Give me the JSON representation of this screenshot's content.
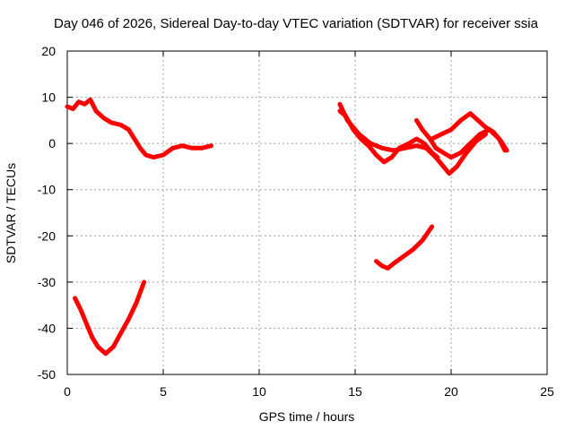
{
  "chart_data": {
    "type": "line",
    "title": "Day 046 of 2026, Sidereal Day-to-day VTEC variation (SDTVAR) for receiver ssia",
    "xlabel": "GPS time / hours",
    "ylabel": "SDTVAR / TECUs",
    "xlim": [
      0,
      25
    ],
    "ylim": [
      -50,
      20
    ],
    "xticks": [
      0,
      5,
      10,
      15,
      20,
      25
    ],
    "yticks": [
      -50,
      -40,
      -30,
      -20,
      -10,
      0,
      10,
      20
    ],
    "xtick_labels": [
      "0",
      "5",
      "10",
      "15",
      "20",
      "25"
    ],
    "ytick_labels": [
      "-50",
      "-40",
      "-30",
      "-20",
      "-10",
      "0",
      "10",
      "20"
    ],
    "grid": true,
    "color": "#ff0000",
    "series": [
      {
        "name": "track-a-main",
        "points": [
          [
            0.0,
            8
          ],
          [
            0.3,
            7.5
          ],
          [
            0.6,
            9
          ],
          [
            0.9,
            8.5
          ],
          [
            1.2,
            9.5
          ],
          [
            1.5,
            7
          ],
          [
            1.9,
            5.5
          ],
          [
            2.3,
            4.5
          ],
          [
            2.8,
            4
          ],
          [
            3.2,
            3
          ],
          [
            3.5,
            1
          ],
          [
            3.8,
            -1
          ],
          [
            4.1,
            -2.5
          ],
          [
            4.5,
            -3
          ],
          [
            5.0,
            -2.5
          ],
          [
            5.5,
            -1
          ],
          [
            6.0,
            -0.5
          ],
          [
            6.5,
            -1
          ],
          [
            7.0,
            -1
          ],
          [
            7.5,
            -0.5
          ]
        ]
      },
      {
        "name": "track-a-dip",
        "points": [
          [
            0.4,
            -33.5
          ],
          [
            0.7,
            -36
          ],
          [
            1.0,
            -39
          ],
          [
            1.3,
            -42
          ],
          [
            1.6,
            -44
          ],
          [
            2.0,
            -45.5
          ],
          [
            2.4,
            -44
          ],
          [
            2.8,
            -41
          ],
          [
            3.2,
            -38
          ],
          [
            3.6,
            -34.5
          ],
          [
            4.0,
            -30
          ]
        ]
      },
      {
        "name": "track-b1",
        "points": [
          [
            14.2,
            7
          ],
          [
            14.5,
            6
          ],
          [
            14.9,
            3
          ],
          [
            15.3,
            1
          ],
          [
            15.7,
            -0.5
          ],
          [
            16.1,
            -2.5
          ],
          [
            16.5,
            -4
          ],
          [
            16.9,
            -3
          ],
          [
            17.3,
            -1
          ],
          [
            17.8,
            0
          ],
          [
            18.2,
            1
          ],
          [
            18.6,
            0
          ],
          [
            19.0,
            -2
          ],
          [
            19.3,
            -3
          ]
        ]
      },
      {
        "name": "track-b2",
        "points": [
          [
            14.2,
            8.5
          ],
          [
            14.6,
            5
          ],
          [
            15.2,
            2
          ],
          [
            15.8,
            0
          ],
          [
            16.4,
            -1
          ],
          [
            17.0,
            -1.5
          ],
          [
            17.6,
            -1
          ],
          [
            18.2,
            -0.5
          ],
          [
            18.7,
            -1
          ],
          [
            19.2,
            -3
          ],
          [
            19.6,
            -5
          ],
          [
            19.9,
            -6.5
          ],
          [
            20.3,
            -5
          ],
          [
            20.8,
            -2
          ],
          [
            21.3,
            0.5
          ],
          [
            21.8,
            2
          ]
        ]
      },
      {
        "name": "track-b3",
        "points": [
          [
            18.2,
            5
          ],
          [
            18.5,
            3
          ],
          [
            18.9,
            1
          ],
          [
            19.2,
            -1
          ],
          [
            19.6,
            -2
          ],
          [
            20.0,
            -3
          ],
          [
            20.5,
            -2
          ],
          [
            21.0,
            0
          ],
          [
            21.5,
            2
          ],
          [
            22.0,
            3
          ],
          [
            22.5,
            1
          ],
          [
            22.8,
            -1.5
          ]
        ]
      },
      {
        "name": "track-b4",
        "points": [
          [
            19.0,
            1
          ],
          [
            19.5,
            2
          ],
          [
            20.0,
            3
          ],
          [
            20.5,
            5
          ],
          [
            21.0,
            6.5
          ],
          [
            21.4,
            5
          ],
          [
            21.8,
            3.5
          ],
          [
            22.2,
            2.5
          ],
          [
            22.6,
            0.5
          ],
          [
            22.9,
            -1.5
          ]
        ]
      },
      {
        "name": "track-b-dip",
        "points": [
          [
            16.1,
            -25.5
          ],
          [
            16.4,
            -26.5
          ],
          [
            16.7,
            -27
          ],
          [
            17.0,
            -26
          ],
          [
            17.5,
            -24.5
          ],
          [
            18.0,
            -23
          ],
          [
            18.5,
            -21
          ],
          [
            19.0,
            -18
          ]
        ]
      }
    ]
  }
}
